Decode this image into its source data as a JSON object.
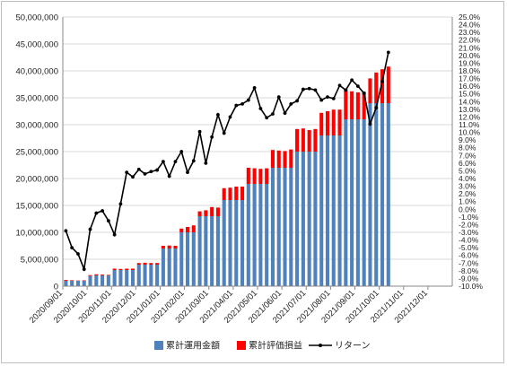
{
  "chart_data": {
    "type": "bar",
    "stacked": true,
    "x_tick_labels": [
      "2020/09/01",
      "2020/10/01",
      "2020/11/01",
      "2020/12/01",
      "2021/01/01",
      "2021/02/01",
      "2021/03/01",
      "2021/04/01",
      "2021/05/01",
      "2021/06/01",
      "2021/07/01",
      "2021/08/01",
      "2021/09/01",
      "2021/10/01",
      "2021/11/01",
      "2021/12/01"
    ],
    "y_left": {
      "min": 0,
      "max": 50000000,
      "step": 5000000,
      "tick_labels": [
        "0",
        "5,000,000",
        "10,000,000",
        "15,000,000",
        "20,000,000",
        "25,000,000",
        "30,000,000",
        "35,000,000",
        "40,000,000",
        "45,000,000",
        "50,000,000"
      ]
    },
    "y_right": {
      "min": -10,
      "max": 25,
      "step": 1,
      "unit": "%"
    },
    "legend_position": "bottom",
    "grid": "horizontal",
    "series": [
      {
        "name": "累計運用金額",
        "kind": "bar",
        "color": "#4f81bd",
        "values": [
          1000000,
          1000000,
          1000000,
          1000000,
          1900000,
          2000000,
          2000000,
          2000000,
          3000000,
          3000000,
          3000000,
          3000000,
          4000000,
          4000000,
          4000000,
          4000000,
          7000000,
          7000000,
          7000000,
          10000000,
          10000000,
          10000000,
          13000000,
          13000000,
          13000000,
          13000000,
          16000000,
          16000000,
          16000000,
          16000000,
          19000000,
          19000000,
          19000000,
          19000000,
          22000000,
          22000000,
          22000000,
          22000000,
          25000000,
          25000000,
          25000000,
          25000000,
          28000000,
          28000000,
          28000000,
          28000000,
          31000000,
          31000000,
          31000000,
          31000000,
          34000000,
          34000000,
          34000000,
          34000000
        ]
      },
      {
        "name": "累計評価損益",
        "kind": "bar",
        "color": "#ff0000",
        "values": [
          150000,
          100000,
          50000,
          80000,
          150000,
          200000,
          150000,
          100000,
          250000,
          200000,
          250000,
          250000,
          300000,
          350000,
          300000,
          300000,
          500000,
          550000,
          500000,
          700000,
          1000000,
          1300000,
          900000,
          1100000,
          1700000,
          1600000,
          2200000,
          2300000,
          2500000,
          2500000,
          3000000,
          2900000,
          2800000,
          2900000,
          3300000,
          3200000,
          3100000,
          3400000,
          4200000,
          4300000,
          4000000,
          4200000,
          4200000,
          4500000,
          4800000,
          4800000,
          5600000,
          5200000,
          5000000,
          5100000,
          4600000,
          5700000,
          6300000,
          6800000
        ]
      },
      {
        "name": "リターン",
        "kind": "line",
        "color": "#000000",
        "axis": "right",
        "values": [
          -2.8,
          -5.0,
          -5.8,
          -7.8,
          -2.6,
          -0.5,
          -0.2,
          -1.5,
          -3.3,
          0.7,
          4.8,
          4.2,
          5.2,
          4.6,
          4.9,
          5.1,
          6.2,
          4.3,
          6.2,
          7.5,
          4.8,
          6.3,
          10.1,
          6.0,
          9.4,
          12.3,
          9.9,
          12.0,
          13.5,
          13.7,
          14.2,
          15.8,
          13.1,
          11.9,
          12.4,
          14.6,
          12.5,
          13.7,
          14.1,
          15.6,
          15.7,
          15.5,
          14.2,
          14.6,
          14.4,
          16.1,
          15.5,
          16.8,
          16.0,
          15.1,
          11.1,
          13.2,
          16.6,
          20.4
        ]
      }
    ]
  }
}
